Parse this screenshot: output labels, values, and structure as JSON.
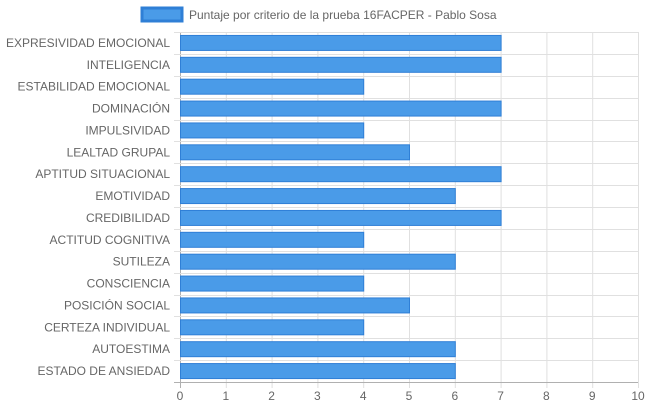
{
  "chart_data": {
    "type": "bar",
    "orientation": "horizontal",
    "legend": {
      "position": "top",
      "series_name": "Puntaje por criterio de la prueba 16FACPER - Pablo Sosa"
    },
    "categories": [
      "EXPRESIVIDAD EMOCIONAL",
      "INTELIGENCIA",
      "ESTABILIDAD EMOCIONAL",
      "DOMINACIÓN",
      "IMPULSIVIDAD",
      "LEALTAD GRUPAL",
      "APTITUD SITUACIONAL",
      "EMOTIVIDAD",
      "CREDIBILIDAD",
      "ACTITUD COGNITIVA",
      "SUTILEZA",
      "CONSCIENCIA",
      "POSICIÓN SOCIAL",
      "CERTEZA INDIVIDUAL",
      "AUTOESTIMA",
      "ESTADO DE ANSIEDAD"
    ],
    "series": [
      {
        "name": "Puntaje por criterio de la prueba 16FACPER - Pablo Sosa",
        "values": [
          7,
          7,
          4,
          7,
          4,
          5,
          7,
          6,
          7,
          4,
          6,
          4,
          5,
          4,
          6,
          6
        ]
      }
    ],
    "xlim": [
      0,
      10
    ],
    "xticks": [
      "0",
      "1",
      "2",
      "3",
      "4",
      "5",
      "6",
      "7",
      "8",
      "9",
      "10"
    ],
    "grid": true,
    "colors": {
      "bar_fill": "#4a9be8",
      "bar_stroke": "#2f7fd6",
      "grid": "#e0e0e0",
      "axis": "#b0b0b0",
      "text": "#666666"
    }
  }
}
